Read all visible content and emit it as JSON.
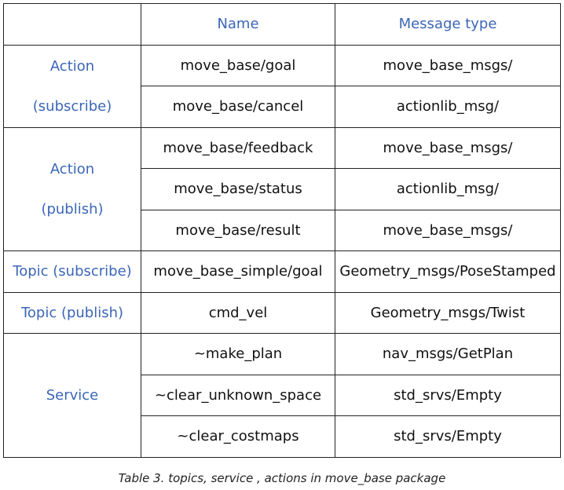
{
  "table": {
    "headers": [
      "",
      "Name",
      "Message type"
    ],
    "groups": [
      {
        "category_lines": [
          "Action",
          "(subscribe)"
        ],
        "rows": [
          {
            "name": "move_base/goal",
            "type": "move_base_msgs/"
          },
          {
            "name": "move_base/cancel",
            "type": "actionlib_msg/"
          }
        ]
      },
      {
        "category_lines": [
          "Action",
          "(publish)"
        ],
        "rows": [
          {
            "name": "move_base/feedback",
            "type": "move_base_msgs/"
          },
          {
            "name": "move_base/status",
            "type": "actionlib_msg/"
          },
          {
            "name": "move_base/result",
            "type": "move_base_msgs/"
          }
        ]
      },
      {
        "category_lines": [
          "Topic (subscribe)"
        ],
        "rows": [
          {
            "name": "move_base_simple/goal",
            "type": "Geometry_msgs/PoseStamped"
          }
        ]
      },
      {
        "category_lines": [
          "Topic (publish)"
        ],
        "rows": [
          {
            "name": "cmd_vel",
            "type": "Geometry_msgs/Twist"
          }
        ]
      },
      {
        "category_lines": [
          "Service"
        ],
        "rows": [
          {
            "name": "~make_plan",
            "type": "nav_msgs/GetPlan"
          },
          {
            "name": "~clear_unknown_space",
            "type": "std_srvs/Empty"
          },
          {
            "name": "~clear_costmaps",
            "type": "std_srvs/Empty"
          }
        ]
      }
    ]
  },
  "caption": "Table 3. topics, service , actions in move_base package",
  "colors": {
    "header_text": "#3b66b7",
    "category_text": "#3b66b7",
    "body_text": "#111111",
    "border": "#222222"
  }
}
